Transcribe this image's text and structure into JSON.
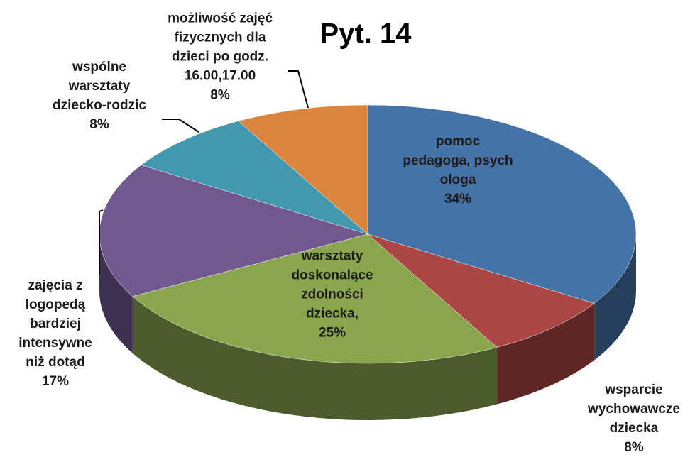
{
  "chart_data": {
    "type": "pie",
    "title": "Pyt. 14",
    "categories": [
      "pomoc\npedagoga, psych\nologa",
      "wsparcie\nwychowawcze\ndziecka",
      "warsztaty\ndoskonalące\nzdolności\ndziecka,",
      "zajęcia z\nlogopedą\nbardziej\nintensywne\nniż dotąd",
      "wspólne\nwarsztaty\ndziecko-rodzic",
      "możliwość zajęć\nfizycznych dla\ndzieci po godz.\n16.00,17.00"
    ],
    "values": [
      34,
      8,
      25,
      17,
      8,
      8
    ],
    "value_labels": [
      "34%",
      "8%",
      "25%",
      "17%",
      "8%",
      "8%"
    ],
    "colors": [
      "#4572a7",
      "#aa4643",
      "#89a54e",
      "#71588f",
      "#4198af",
      "#db843d"
    ]
  }
}
